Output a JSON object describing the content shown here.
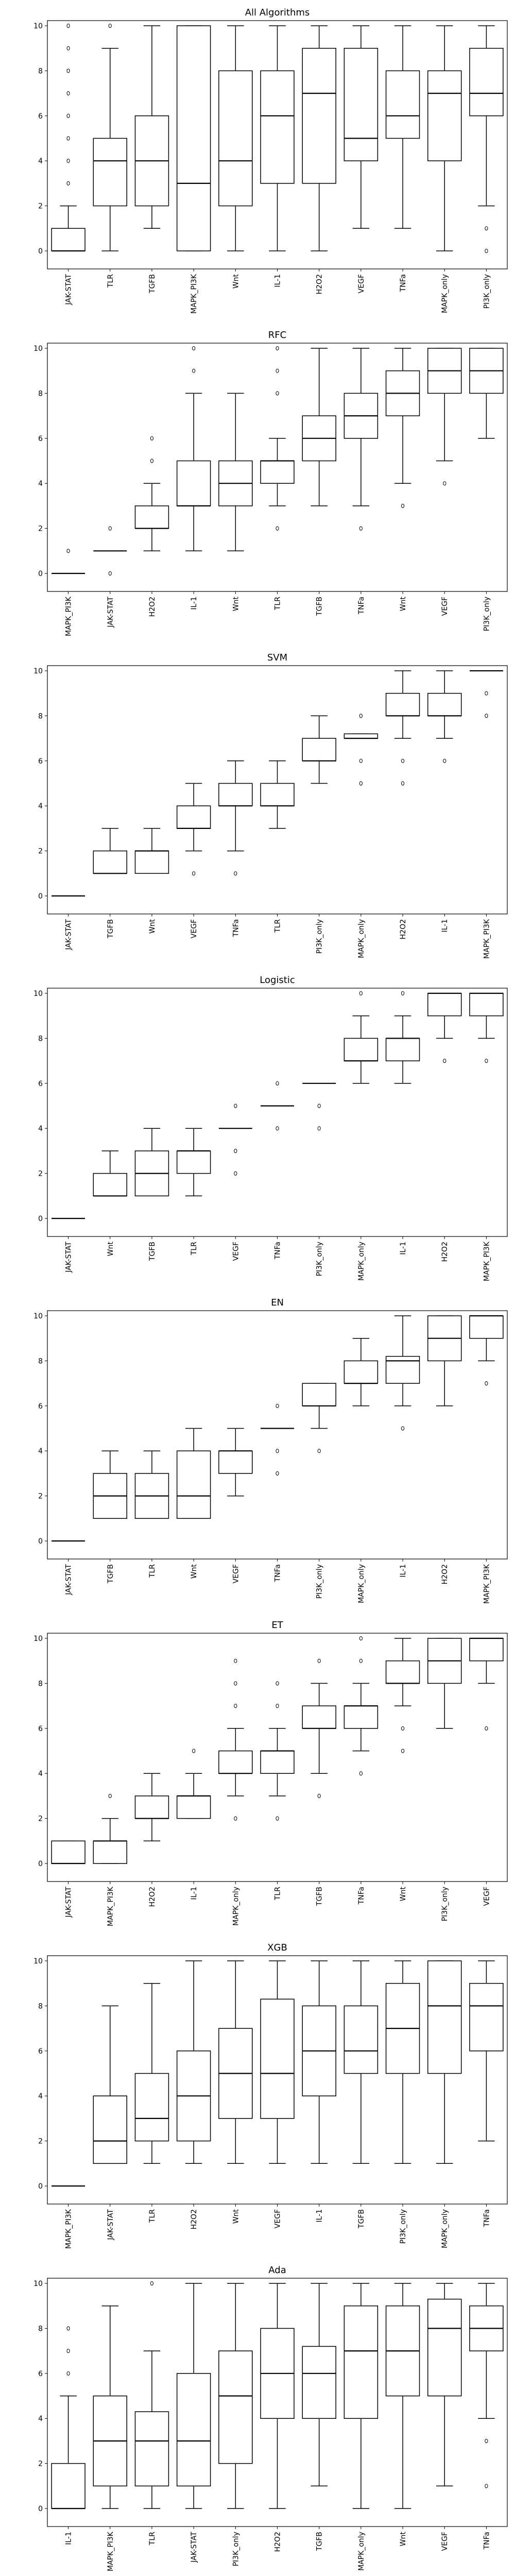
{
  "chart_data": [
    {
      "type": "box",
      "title": "All Algorithms",
      "ylim": [
        0,
        10
      ],
      "yticks": [
        0,
        2,
        4,
        6,
        8,
        10
      ],
      "categories": [
        "JAK-STAT",
        "TLR",
        "TGFB",
        "MAPK_PI3K",
        "Wnt",
        "IL-1",
        "H2O2",
        "VEGF",
        "TNFa",
        "MAPK_only",
        "PI3K_only"
      ],
      "boxes": [
        {
          "min": 0,
          "q1": 0,
          "median": 0,
          "q3": 1,
          "max": 2,
          "fliers": [
            3,
            4,
            5,
            6,
            7,
            8,
            9,
            10
          ]
        },
        {
          "min": 0,
          "q1": 2,
          "median": 4,
          "q3": 5,
          "max": 9,
          "fliers": [
            10
          ]
        },
        {
          "min": 1,
          "q1": 2,
          "median": 4,
          "q3": 6,
          "max": 10,
          "fliers": []
        },
        {
          "min": 0,
          "q1": 0,
          "median": 3,
          "q3": 10,
          "max": 10,
          "fliers": []
        },
        {
          "min": 0,
          "q1": 2,
          "median": 4,
          "q3": 8,
          "max": 10,
          "fliers": []
        },
        {
          "min": 0,
          "q1": 3,
          "median": 6,
          "q3": 8,
          "max": 10,
          "fliers": []
        },
        {
          "min": 0,
          "q1": 3,
          "median": 7,
          "q3": 9,
          "max": 10,
          "fliers": []
        },
        {
          "min": 1,
          "q1": 4,
          "median": 5,
          "q3": 9,
          "max": 10,
          "fliers": []
        },
        {
          "min": 1,
          "q1": 5,
          "median": 6,
          "q3": 8,
          "max": 10,
          "fliers": []
        },
        {
          "min": 0,
          "q1": 4,
          "median": 7,
          "q3": 8,
          "max": 10,
          "fliers": []
        },
        {
          "min": 2,
          "q1": 6,
          "median": 7,
          "q3": 9,
          "max": 10,
          "fliers": [
            0,
            1
          ]
        }
      ]
    },
    {
      "type": "box",
      "title": "RFC",
      "ylim": [
        0,
        10
      ],
      "yticks": [
        0,
        2,
        4,
        6,
        8,
        10
      ],
      "categories": [
        "MAPK_PI3K",
        "JAK-STAT",
        "H2O2",
        "IL-1",
        "Wnt",
        "TLR",
        "TGFB",
        "TNFa",
        "Wnt",
        "VEGF",
        "PI3K_only"
      ],
      "boxes": [
        {
          "min": 0,
          "q1": 0,
          "median": 0,
          "q3": 0,
          "max": 0,
          "fliers": [
            1
          ]
        },
        {
          "min": 1,
          "q1": 1,
          "median": 1,
          "q3": 1,
          "max": 1,
          "fliers": [
            0,
            2
          ]
        },
        {
          "min": 1,
          "q1": 2,
          "median": 2,
          "q3": 3,
          "max": 4,
          "fliers": [
            5,
            6
          ]
        },
        {
          "min": 1,
          "q1": 3,
          "median": 3,
          "q3": 5,
          "max": 8,
          "fliers": [
            9,
            10
          ]
        },
        {
          "min": 1,
          "q1": 3,
          "median": 4,
          "q3": 5,
          "max": 8,
          "fliers": []
        },
        {
          "min": 3,
          "q1": 4,
          "median": 5,
          "q3": 5,
          "max": 6,
          "fliers": [
            2,
            8,
            9,
            10
          ]
        },
        {
          "min": 3,
          "q1": 5,
          "median": 6,
          "q3": 7,
          "max": 10,
          "fliers": []
        },
        {
          "min": 3,
          "q1": 6,
          "median": 7,
          "q3": 8,
          "max": 10,
          "fliers": [
            2
          ]
        },
        {
          "min": 4,
          "q1": 7,
          "median": 8,
          "q3": 9,
          "max": 10,
          "fliers": [
            3
          ]
        },
        {
          "min": 5,
          "q1": 8,
          "median": 9,
          "q3": 10,
          "max": 10,
          "fliers": [
            4
          ]
        },
        {
          "min": 6,
          "q1": 8,
          "median": 9,
          "q3": 10,
          "max": 10,
          "fliers": []
        }
      ]
    },
    {
      "type": "box",
      "title": "SVM",
      "ylim": [
        0,
        10
      ],
      "yticks": [
        0,
        2,
        4,
        6,
        8,
        10
      ],
      "categories": [
        "JAK-STAT",
        "TGFB",
        "Wnt",
        "VEGF",
        "TNFa",
        "TLR",
        "PI3K_only",
        "MAPK_only",
        "H2O2",
        "IL-1",
        "MAPK_PI3K"
      ],
      "boxes": [
        {
          "min": 0,
          "q1": 0,
          "median": 0,
          "q3": 0,
          "max": 0,
          "fliers": []
        },
        {
          "min": 1,
          "q1": 1,
          "median": 1,
          "q3": 2,
          "max": 3,
          "fliers": []
        },
        {
          "min": 1,
          "q1": 1,
          "median": 2,
          "q3": 2,
          "max": 3,
          "fliers": []
        },
        {
          "min": 2,
          "q1": 3,
          "median": 3,
          "q3": 4,
          "max": 5,
          "fliers": [
            1
          ]
        },
        {
          "min": 2,
          "q1": 4,
          "median": 4,
          "q3": 5,
          "max": 6,
          "fliers": [
            1
          ]
        },
        {
          "min": 3,
          "q1": 4,
          "median": 4,
          "q3": 5,
          "max": 6,
          "fliers": []
        },
        {
          "min": 5,
          "q1": 6,
          "median": 6,
          "q3": 7,
          "max": 8,
          "fliers": []
        },
        {
          "min": 7,
          "q1": 7,
          "median": 7,
          "q3": 7.2,
          "max": 7.2,
          "fliers": [
            5,
            6,
            8
          ]
        },
        {
          "min": 7,
          "q1": 8,
          "median": 8,
          "q3": 9,
          "max": 10,
          "fliers": [
            5,
            6
          ]
        },
        {
          "min": 7,
          "q1": 8,
          "median": 8,
          "q3": 9,
          "max": 10,
          "fliers": [
            6
          ]
        },
        {
          "min": 10,
          "q1": 10,
          "median": 10,
          "q3": 10,
          "max": 10,
          "fliers": [
            8,
            9
          ]
        }
      ]
    },
    {
      "type": "box",
      "title": "Logistic",
      "ylim": [
        0,
        10
      ],
      "yticks": [
        0,
        2,
        4,
        6,
        8,
        10
      ],
      "categories": [
        "JAK-STAT",
        "Wnt",
        "TGFB",
        "TLR",
        "VEGF",
        "TNFa",
        "PI3K_only",
        "MAPK_only",
        "IL-1",
        "H2O2",
        "MAPK_PI3K"
      ],
      "boxes": [
        {
          "min": 0,
          "q1": 0,
          "median": 0,
          "q3": 0,
          "max": 0,
          "fliers": []
        },
        {
          "min": 1,
          "q1": 1,
          "median": 1,
          "q3": 2,
          "max": 3,
          "fliers": []
        },
        {
          "min": 1,
          "q1": 1,
          "median": 2,
          "q3": 3,
          "max": 4,
          "fliers": []
        },
        {
          "min": 1,
          "q1": 2,
          "median": 3,
          "q3": 3,
          "max": 4,
          "fliers": []
        },
        {
          "min": 4,
          "q1": 4,
          "median": 4,
          "q3": 4,
          "max": 4,
          "fliers": [
            2,
            3,
            5
          ]
        },
        {
          "min": 5,
          "q1": 5,
          "median": 5,
          "q3": 5,
          "max": 5,
          "fliers": [
            4,
            6
          ]
        },
        {
          "min": 6,
          "q1": 6,
          "median": 6,
          "q3": 6,
          "max": 6,
          "fliers": [
            4,
            5
          ]
        },
        {
          "min": 6,
          "q1": 7,
          "median": 7,
          "q3": 8,
          "max": 9,
          "fliers": [
            10
          ]
        },
        {
          "min": 6,
          "q1": 7,
          "median": 8,
          "q3": 8,
          "max": 9,
          "fliers": [
            10
          ]
        },
        {
          "min": 8,
          "q1": 9,
          "median": 10,
          "q3": 10,
          "max": 10,
          "fliers": [
            7
          ]
        },
        {
          "min": 8,
          "q1": 9,
          "median": 10,
          "q3": 10,
          "max": 10,
          "fliers": [
            7
          ]
        }
      ]
    },
    {
      "type": "box",
      "title": "EN",
      "ylim": [
        0,
        10
      ],
      "yticks": [
        0,
        2,
        4,
        6,
        8,
        10
      ],
      "categories": [
        "JAK-STAT",
        "TGFB",
        "TLR",
        "Wnt",
        "VEGF",
        "TNFa",
        "PI3K_only",
        "MAPK_only",
        "IL-1",
        "H2O2",
        "MAPK_PI3K"
      ],
      "boxes": [
        {
          "min": 0,
          "q1": 0,
          "median": 0,
          "q3": 0,
          "max": 0,
          "fliers": []
        },
        {
          "min": 1,
          "q1": 1,
          "median": 2,
          "q3": 3,
          "max": 4,
          "fliers": []
        },
        {
          "min": 1,
          "q1": 1,
          "median": 2,
          "q3": 3,
          "max": 4,
          "fliers": []
        },
        {
          "min": 1,
          "q1": 1,
          "median": 2,
          "q3": 4,
          "max": 5,
          "fliers": []
        },
        {
          "min": 2,
          "q1": 3,
          "median": 4,
          "q3": 4,
          "max": 5,
          "fliers": []
        },
        {
          "min": 5,
          "q1": 5,
          "median": 5,
          "q3": 5,
          "max": 5,
          "fliers": [
            3,
            4,
            6
          ]
        },
        {
          "min": 5,
          "q1": 6,
          "median": 6,
          "q3": 7,
          "max": 7,
          "fliers": [
            4
          ]
        },
        {
          "min": 6,
          "q1": 7,
          "median": 7,
          "q3": 8,
          "max": 9,
          "fliers": []
        },
        {
          "min": 6,
          "q1": 7,
          "median": 8,
          "q3": 8.2,
          "max": 10,
          "fliers": [
            5
          ]
        },
        {
          "min": 6,
          "q1": 8,
          "median": 9,
          "q3": 10,
          "max": 10,
          "fliers": []
        },
        {
          "min": 8,
          "q1": 9,
          "median": 10,
          "q3": 10,
          "max": 10,
          "fliers": [
            7
          ]
        }
      ]
    },
    {
      "type": "box",
      "title": "ET",
      "ylim": [
        0,
        10
      ],
      "yticks": [
        0,
        2,
        4,
        6,
        8,
        10
      ],
      "categories": [
        "JAK-STAT",
        "MAPK_PI3K",
        "H2O2",
        "IL-1",
        "MAPK_only",
        "TLR",
        "TGFB",
        "TNFa",
        "Wnt",
        "PI3K_only",
        "VEGF"
      ],
      "boxes": [
        {
          "min": 0,
          "q1": 0,
          "median": 0,
          "q3": 1,
          "max": 1,
          "fliers": []
        },
        {
          "min": 0,
          "q1": 0,
          "median": 1,
          "q3": 1,
          "max": 2,
          "fliers": [
            3
          ]
        },
        {
          "min": 1,
          "q1": 2,
          "median": 2,
          "q3": 3,
          "max": 4,
          "fliers": []
        },
        {
          "min": 2,
          "q1": 2,
          "median": 3,
          "q3": 3,
          "max": 4,
          "fliers": [
            5
          ]
        },
        {
          "min": 3,
          "q1": 4,
          "median": 4,
          "q3": 5,
          "max": 6,
          "fliers": [
            2,
            7,
            8,
            9
          ]
        },
        {
          "min": 3,
          "q1": 4,
          "median": 5,
          "q3": 5,
          "max": 6,
          "fliers": [
            2,
            7,
            8
          ]
        },
        {
          "min": 4,
          "q1": 6,
          "median": 6,
          "q3": 7,
          "max": 8,
          "fliers": [
            3,
            9
          ]
        },
        {
          "min": 5,
          "q1": 6,
          "median": 7,
          "q3": 7,
          "max": 8,
          "fliers": [
            4,
            9,
            10
          ]
        },
        {
          "min": 7,
          "q1": 8,
          "median": 8,
          "q3": 9,
          "max": 10,
          "fliers": [
            5,
            6
          ]
        },
        {
          "min": 6,
          "q1": 8,
          "median": 9,
          "q3": 10,
          "max": 10,
          "fliers": []
        },
        {
          "min": 8,
          "q1": 9,
          "median": 10,
          "q3": 10,
          "max": 10,
          "fliers": [
            6
          ]
        }
      ]
    },
    {
      "type": "box",
      "title": "XGB",
      "ylim": [
        0,
        10
      ],
      "yticks": [
        0,
        2,
        4,
        6,
        8,
        10
      ],
      "categories": [
        "MAPK_PI3K",
        "JAK-STAT",
        "TLR",
        "H2O2",
        "Wnt",
        "VEGF",
        "IL-1",
        "TGFB",
        "PI3K_only",
        "MAPK_only",
        "TNFa"
      ],
      "boxes": [
        {
          "min": 0,
          "q1": 0,
          "median": 0,
          "q3": 0,
          "max": 0,
          "fliers": []
        },
        {
          "min": 1,
          "q1": 1,
          "median": 2,
          "q3": 4,
          "max": 8,
          "fliers": []
        },
        {
          "min": 1,
          "q1": 2,
          "median": 3,
          "q3": 5,
          "max": 9,
          "fliers": []
        },
        {
          "min": 1,
          "q1": 2,
          "median": 4,
          "q3": 6,
          "max": 10,
          "fliers": []
        },
        {
          "min": 1,
          "q1": 3,
          "median": 5,
          "q3": 7,
          "max": 10,
          "fliers": []
        },
        {
          "min": 1,
          "q1": 3,
          "median": 5,
          "q3": 8.3,
          "max": 10,
          "fliers": []
        },
        {
          "min": 1,
          "q1": 4,
          "median": 6,
          "q3": 8,
          "max": 10,
          "fliers": []
        },
        {
          "min": 1,
          "q1": 5,
          "median": 6,
          "q3": 8,
          "max": 10,
          "fliers": []
        },
        {
          "min": 1,
          "q1": 5,
          "median": 7,
          "q3": 9,
          "max": 10,
          "fliers": []
        },
        {
          "min": 1,
          "q1": 5,
          "median": 8,
          "q3": 10,
          "max": 10,
          "fliers": []
        },
        {
          "min": 2,
          "q1": 6,
          "median": 8,
          "q3": 9,
          "max": 10,
          "fliers": []
        }
      ]
    },
    {
      "type": "box",
      "title": "Ada",
      "ylim": [
        0,
        10
      ],
      "yticks": [
        0,
        2,
        4,
        6,
        8,
        10
      ],
      "categories": [
        "IL-1",
        "MAPK_PI3K",
        "TLR",
        "JAK-STAT",
        "PI3K_only",
        "H2O2",
        "TGFB",
        "MAPK_only",
        "Wnt",
        "VEGF",
        "TNFa"
      ],
      "boxes": [
        {
          "min": 0,
          "q1": 0,
          "median": 0,
          "q3": 2,
          "max": 5,
          "fliers": [
            6,
            7,
            8
          ]
        },
        {
          "min": 0,
          "q1": 1,
          "median": 3,
          "q3": 5,
          "max": 9,
          "fliers": []
        },
        {
          "min": 0,
          "q1": 1,
          "median": 3,
          "q3": 4.3,
          "max": 7,
          "fliers": [
            10
          ]
        },
        {
          "min": 0,
          "q1": 1,
          "median": 3,
          "q3": 6,
          "max": 10,
          "fliers": []
        },
        {
          "min": 0,
          "q1": 2,
          "median": 5,
          "q3": 7,
          "max": 10,
          "fliers": []
        },
        {
          "min": 0,
          "q1": 4,
          "median": 6,
          "q3": 8,
          "max": 10,
          "fliers": []
        },
        {
          "min": 1,
          "q1": 4,
          "median": 6,
          "q3": 7.2,
          "max": 10,
          "fliers": []
        },
        {
          "min": 0,
          "q1": 4,
          "median": 7,
          "q3": 9,
          "max": 10,
          "fliers": []
        },
        {
          "min": 0,
          "q1": 5,
          "median": 7,
          "q3": 9,
          "max": 10,
          "fliers": []
        },
        {
          "min": 1,
          "q1": 5,
          "median": 8,
          "q3": 9.3,
          "max": 10,
          "fliers": []
        },
        {
          "min": 4,
          "q1": 7,
          "median": 8,
          "q3": 9,
          "max": 10,
          "fliers": [
            1,
            3
          ]
        }
      ]
    }
  ]
}
